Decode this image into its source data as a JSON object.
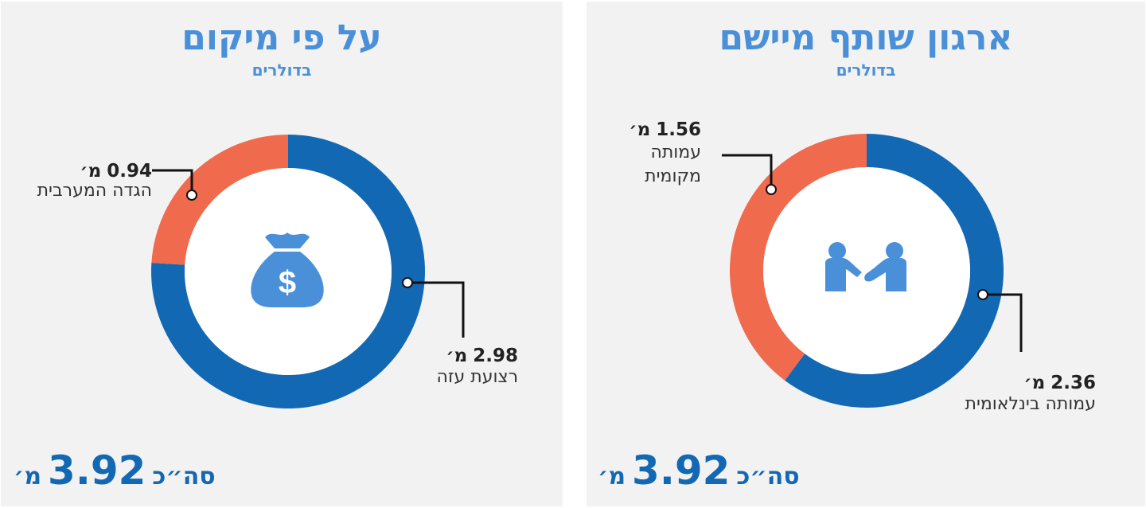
{
  "colors": {
    "blue": "#1368b4",
    "orange": "#f06a4e",
    "accent": "#4a90d9",
    "panel_bg": "#f2f2f2"
  },
  "chart_data": [
    {
      "type": "pie",
      "title": "על פי מיקום",
      "subtitle": "בדולרים",
      "icon": "money-bag-icon",
      "slices": [
        {
          "label": "רצועת עזה",
          "value": 2.98,
          "display": "2.98",
          "unit": "מ׳",
          "color": "#1368b4"
        },
        {
          "label": "הגדה המערבית",
          "value": 0.94,
          "display": "0.94",
          "unit": "מ׳",
          "color": "#f06a4e"
        }
      ],
      "total": {
        "label": "סה״כ",
        "value": "3.92",
        "unit": "מ׳"
      }
    },
    {
      "type": "pie",
      "title": "ארגון שותף מיישם",
      "subtitle": "בדולרים",
      "icon": "handshake-icon",
      "slices": [
        {
          "label": "עמותה בינלאומית",
          "value": 2.36,
          "display": "2.36",
          "unit": "מ׳",
          "color": "#1368b4"
        },
        {
          "label": "עמותה\nמקומית",
          "value": 1.56,
          "display": "1.56",
          "unit": "מ׳",
          "color": "#f06a4e"
        }
      ],
      "total": {
        "label": "סה״כ",
        "value": "3.92",
        "unit": "מ׳"
      }
    }
  ]
}
